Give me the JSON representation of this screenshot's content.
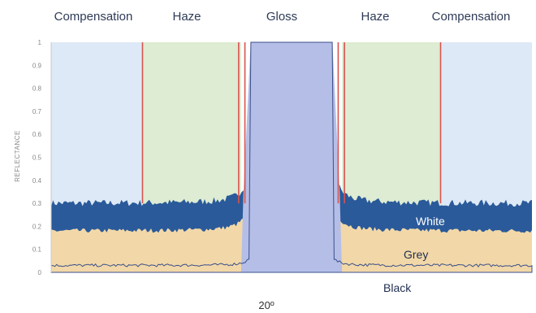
{
  "chart_data": {
    "type": "area",
    "region_labels": [
      "Compensation",
      "Haze",
      "Gloss",
      "Haze",
      "Compensation"
    ],
    "ylabel": "REFLECTANCE",
    "xlabel": "20º",
    "ylim": [
      0,
      1
    ],
    "yticks": [
      "0",
      "0.1",
      "0.2",
      "0.3",
      "0.4",
      "0.5",
      "0.6",
      "0.7",
      "0.8",
      "0.9",
      "1"
    ],
    "grid": false,
    "series": [
      {
        "name": "White",
        "level": 0.3,
        "color": "#2a5a9a"
      },
      {
        "name": "Grey",
        "level": 0.18,
        "color": "#f2d8a8"
      },
      {
        "name": "Black",
        "level": 0.03,
        "color": "#3a4f8a"
      }
    ],
    "colors": {
      "compensation_bg": "#dde9f6",
      "haze_bg": "#ddecd2",
      "gloss_fill": "#b5bee6",
      "boundary_line": "#d9534f",
      "series_label_white": "#ffffff",
      "series_label_dark": "#1f2d4f"
    }
  }
}
